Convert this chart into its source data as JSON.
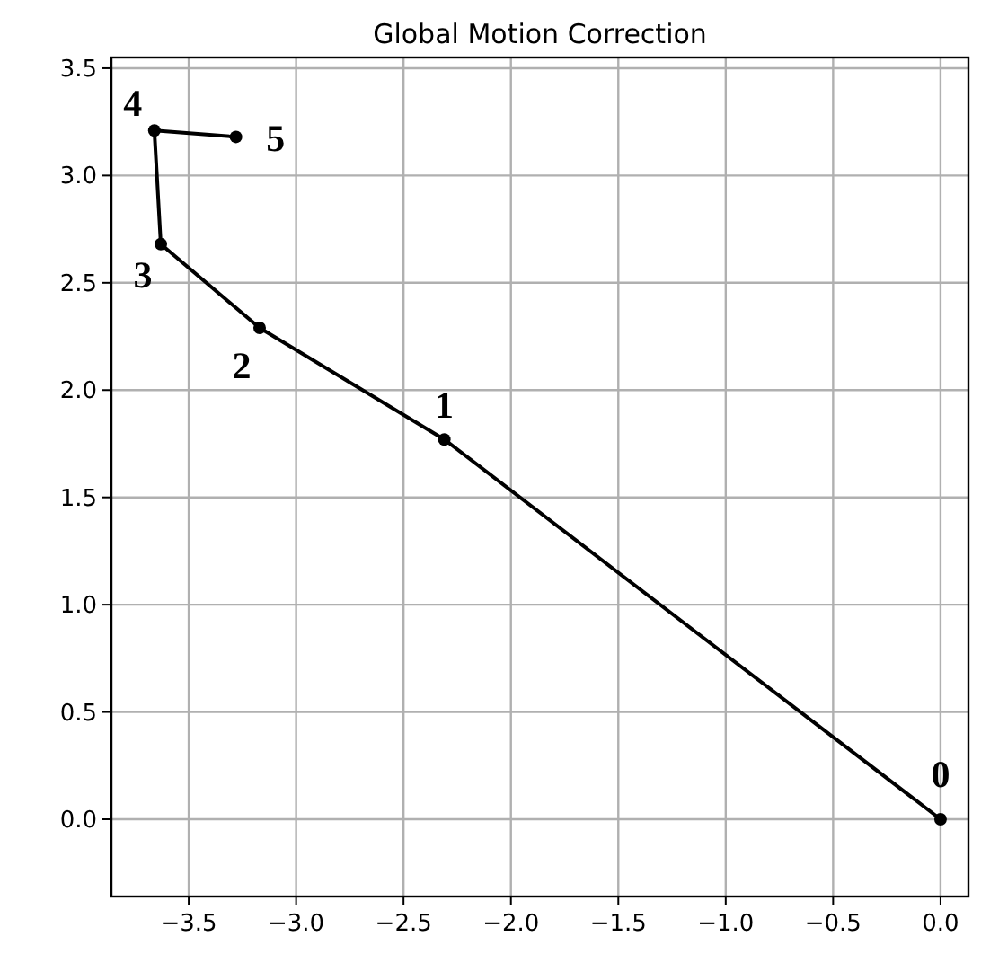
{
  "chart_data": {
    "type": "line",
    "title": "Global Motion Correction",
    "x": [
      0,
      -2.31,
      -3.17,
      -3.63,
      -3.66,
      -3.28
    ],
    "series": [
      {
        "color": "#000000",
        "values": [
          0,
          1.77,
          2.29,
          2.68,
          3.21,
          3.18
        ]
      }
    ],
    "xlim": [
      -3.86,
      0.13
    ],
    "ylim": [
      -0.36,
      3.55
    ],
    "xticks": [
      {
        "value": -3.5,
        "label": "−3.5"
      },
      {
        "value": -3,
        "label": "−3.0"
      },
      {
        "value": -2.5,
        "label": "−2.5"
      },
      {
        "value": -2,
        "label": "−2.0"
      },
      {
        "value": -1.5,
        "label": "−1.5"
      },
      {
        "value": -1,
        "label": "−1.0"
      },
      {
        "value": -0.5,
        "label": "−0.5"
      },
      {
        "value": 0,
        "label": "0.0"
      }
    ],
    "yticks": [
      {
        "value": 0,
        "label": "0.0"
      },
      {
        "value": 0.5,
        "label": "0.5"
      },
      {
        "value": 1,
        "label": "1.0"
      },
      {
        "value": 1.5,
        "label": "1.5"
      },
      {
        "value": 2,
        "label": "2.0"
      },
      {
        "value": 2.5,
        "label": "2.5"
      },
      {
        "value": 3,
        "label": "3.0"
      },
      {
        "value": 3.5,
        "label": "3.5"
      }
    ],
    "grid": true,
    "marker": "circle",
    "line_style": "solid",
    "annotations": [
      {
        "text": "0",
        "x": 0,
        "y": 0
      },
      {
        "text": "1",
        "x": -2.31,
        "y": 1.77
      },
      {
        "text": "2",
        "x": -3.17,
        "y": 2.29
      },
      {
        "text": "3",
        "x": -3.63,
        "y": 2.68
      },
      {
        "text": "4",
        "x": -3.66,
        "y": 3.21
      },
      {
        "text": "5",
        "x": -3.28,
        "y": 3.18
      }
    ]
  }
}
